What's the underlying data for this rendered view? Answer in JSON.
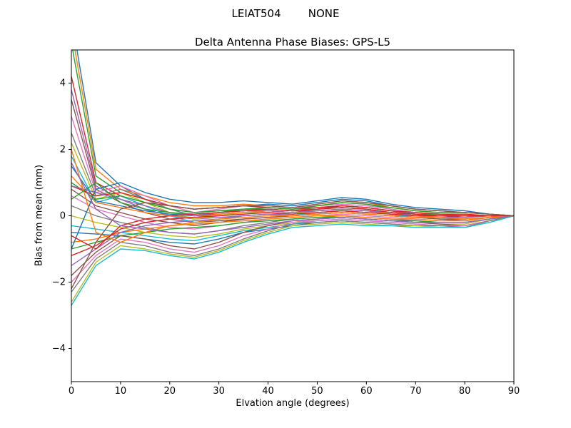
{
  "chart_data": {
    "type": "line",
    "suptitle": "LEIAT504        NONE",
    "title": "Delta Antenna Phase Biases: GPS-L5",
    "xlabel": "Elvation angle (degrees)",
    "ylabel": "Bias from mean (mm)",
    "xlim": [
      0,
      90
    ],
    "ylim": [
      -5,
      5
    ],
    "xticks": [
      0,
      10,
      20,
      30,
      40,
      50,
      60,
      70,
      80,
      90
    ],
    "yticks": [
      -4,
      -2,
      0,
      2,
      4
    ],
    "yticklabels": [
      "−4",
      "−2",
      "0",
      "2",
      "4"
    ],
    "grid": false,
    "legend": "none",
    "x": [
      0,
      5,
      10,
      15,
      20,
      25,
      30,
      35,
      40,
      45,
      50,
      55,
      60,
      65,
      70,
      75,
      80,
      85,
      90
    ],
    "series": [
      [
        6.0,
        1.6,
        0.9,
        0.5,
        0.3,
        0.2,
        0.25,
        0.3,
        0.35,
        0.3,
        0.4,
        0.5,
        0.45,
        0.3,
        0.2,
        0.15,
        0.1,
        0.05,
        0.0
      ],
      [
        5.6,
        1.4,
        0.8,
        0.6,
        0.4,
        0.3,
        0.3,
        0.35,
        0.3,
        0.25,
        0.35,
        0.45,
        0.4,
        0.25,
        0.15,
        0.1,
        0.1,
        0.05,
        0.0
      ],
      [
        5.2,
        1.2,
        0.7,
        0.4,
        0.2,
        0.1,
        0.15,
        0.2,
        0.25,
        0.2,
        0.3,
        0.4,
        0.35,
        0.2,
        0.1,
        0.05,
        0.0,
        0.0,
        0.0
      ],
      [
        4.2,
        1.0,
        0.6,
        0.3,
        0.1,
        0.0,
        0.05,
        0.1,
        0.15,
        0.1,
        0.2,
        0.3,
        0.25,
        0.15,
        0.05,
        0.0,
        -0.05,
        0.0,
        0.0
      ],
      [
        3.8,
        0.9,
        0.5,
        0.2,
        0.0,
        -0.1,
        -0.05,
        0.0,
        0.05,
        0.05,
        0.15,
        0.2,
        0.15,
        0.1,
        0.0,
        -0.05,
        -0.1,
        -0.05,
        0.0
      ],
      [
        3.5,
        0.8,
        0.4,
        0.1,
        -0.1,
        -0.2,
        -0.15,
        -0.1,
        -0.05,
        0.0,
        0.1,
        0.15,
        0.1,
        0.05,
        -0.05,
        -0.1,
        -0.15,
        -0.05,
        0.0
      ],
      [
        3.0,
        0.7,
        0.9,
        0.6,
        0.3,
        0.1,
        0.2,
        0.3,
        0.3,
        0.25,
        0.3,
        0.35,
        0.3,
        0.2,
        0.1,
        0.05,
        0.05,
        0.0,
        0.0
      ],
      [
        2.5,
        0.6,
        0.8,
        0.5,
        0.2,
        0.0,
        0.1,
        0.2,
        0.2,
        0.15,
        0.25,
        0.3,
        0.25,
        0.15,
        0.05,
        0.0,
        0.0,
        0.0,
        0.0
      ],
      [
        2.2,
        0.5,
        0.7,
        0.4,
        0.1,
        -0.1,
        0.0,
        0.1,
        0.1,
        0.05,
        0.15,
        0.2,
        0.15,
        0.1,
        0.0,
        -0.05,
        -0.05,
        0.0,
        0.0
      ],
      [
        1.8,
        0.4,
        0.6,
        0.3,
        0.0,
        -0.2,
        -0.1,
        0.0,
        0.05,
        0.0,
        0.1,
        0.15,
        0.1,
        0.05,
        -0.05,
        -0.1,
        -0.1,
        -0.05,
        0.0
      ],
      [
        1.5,
        0.45,
        0.3,
        0.15,
        0.05,
        0.0,
        0.1,
        0.15,
        0.2,
        0.15,
        0.2,
        0.25,
        0.2,
        0.1,
        0.05,
        0.0,
        0.0,
        0.0,
        0.0
      ],
      [
        1.2,
        0.4,
        0.25,
        0.1,
        0.0,
        -0.05,
        0.05,
        0.1,
        0.15,
        0.1,
        0.15,
        0.2,
        0.15,
        0.05,
        0.0,
        -0.05,
        -0.05,
        0.0,
        0.0
      ],
      [
        1.0,
        0.5,
        0.6,
        0.4,
        0.2,
        0.1,
        0.15,
        0.2,
        0.2,
        0.15,
        0.2,
        0.25,
        0.2,
        0.1,
        0.05,
        0.05,
        0.0,
        0.0,
        0.0
      ],
      [
        0.9,
        0.6,
        0.7,
        0.5,
        0.3,
        0.2,
        0.25,
        0.3,
        0.25,
        0.2,
        0.25,
        0.3,
        0.25,
        0.15,
        0.1,
        0.05,
        0.05,
        0.0,
        0.0
      ],
      [
        0.9,
        0.7,
        0.5,
        0.3,
        0.1,
        0.0,
        0.1,
        0.15,
        0.15,
        0.1,
        0.15,
        0.2,
        0.15,
        0.1,
        0.0,
        0.0,
        0.0,
        0.0,
        0.0
      ],
      [
        0.8,
        0.3,
        0.1,
        -0.1,
        -0.2,
        -0.3,
        -0.2,
        -0.1,
        -0.05,
        0.0,
        0.05,
        0.1,
        0.05,
        0.0,
        -0.05,
        -0.1,
        -0.1,
        -0.05,
        0.0
      ],
      [
        0.6,
        0.2,
        0.0,
        -0.2,
        -0.35,
        -0.4,
        -0.3,
        -0.2,
        -0.1,
        -0.05,
        0.0,
        0.05,
        0.0,
        -0.05,
        -0.1,
        -0.15,
        -0.15,
        -0.05,
        0.0
      ],
      [
        0.3,
        0.0,
        -0.2,
        -0.35,
        -0.5,
        -0.55,
        -0.45,
        -0.3,
        -0.2,
        -0.1,
        -0.05,
        0.0,
        -0.05,
        -0.1,
        -0.15,
        -0.2,
        -0.2,
        -0.1,
        0.0
      ],
      [
        0.0,
        -0.2,
        -0.35,
        -0.5,
        -0.6,
        -0.65,
        -0.55,
        -0.4,
        -0.3,
        -0.2,
        -0.1,
        -0.05,
        -0.1,
        -0.15,
        -0.2,
        -0.25,
        -0.25,
        -0.1,
        0.0
      ],
      [
        -0.3,
        -0.4,
        -0.5,
        -0.6,
        -0.7,
        -0.75,
        -0.6,
        -0.45,
        -0.35,
        -0.25,
        -0.15,
        -0.1,
        -0.15,
        -0.2,
        -0.25,
        -0.3,
        -0.3,
        -0.15,
        0.0
      ],
      [
        -0.5,
        -0.55,
        -0.6,
        -0.7,
        -0.8,
        -0.85,
        -0.7,
        -0.5,
        -0.4,
        -0.3,
        -0.2,
        -0.15,
        -0.2,
        -0.25,
        -0.3,
        -0.3,
        -0.3,
        -0.15,
        0.0
      ],
      [
        -0.8,
        -0.7,
        -0.5,
        -0.4,
        -0.3,
        -0.25,
        -0.2,
        -0.15,
        -0.1,
        -0.05,
        0.0,
        0.0,
        -0.05,
        -0.1,
        -0.1,
        -0.15,
        -0.15,
        -0.05,
        0.0
      ],
      [
        -1.0,
        -0.8,
        -0.6,
        -0.5,
        -0.4,
        -0.35,
        -0.3,
        -0.2,
        -0.15,
        -0.1,
        -0.05,
        -0.05,
        -0.1,
        -0.15,
        -0.15,
        -0.2,
        -0.2,
        -0.1,
        0.0
      ],
      [
        -1.2,
        -0.9,
        -0.4,
        -0.2,
        -0.1,
        -0.05,
        0.0,
        0.05,
        0.1,
        0.05,
        0.1,
        0.15,
        0.1,
        0.05,
        0.0,
        0.0,
        0.0,
        0.0,
        0.0
      ],
      [
        -1.5,
        -1.0,
        -0.5,
        -0.3,
        -0.2,
        -0.15,
        -0.1,
        0.0,
        0.05,
        0.0,
        0.05,
        0.1,
        0.05,
        0.0,
        -0.05,
        -0.05,
        -0.05,
        0.0,
        0.0
      ],
      [
        -1.8,
        -1.1,
        -0.6,
        -0.7,
        -0.9,
        -1.0,
        -0.8,
        -0.5,
        -0.3,
        -0.15,
        -0.1,
        -0.05,
        -0.1,
        -0.15,
        -0.2,
        -0.25,
        -0.3,
        -0.15,
        0.0
      ],
      [
        -2.0,
        -1.2,
        -0.7,
        -0.8,
        -1.0,
        -1.1,
        -0.9,
        -0.6,
        -0.4,
        -0.2,
        -0.15,
        -0.1,
        -0.15,
        -0.2,
        -0.25,
        -0.3,
        -0.3,
        -0.15,
        0.0
      ],
      [
        -2.3,
        -1.3,
        -0.8,
        -0.9,
        -1.1,
        -1.2,
        -1.0,
        -0.7,
        -0.45,
        -0.25,
        -0.2,
        -0.15,
        -0.2,
        -0.25,
        -0.3,
        -0.3,
        -0.35,
        -0.15,
        0.0
      ],
      [
        -2.6,
        -1.4,
        -0.9,
        -1.0,
        -1.15,
        -1.25,
        -1.05,
        -0.75,
        -0.5,
        -0.3,
        -0.25,
        -0.2,
        -0.25,
        -0.3,
        -0.3,
        -0.35,
        -0.35,
        -0.2,
        0.0
      ],
      [
        -2.7,
        -1.5,
        -1.0,
        -1.05,
        -1.2,
        -1.3,
        -1.1,
        -0.8,
        -0.55,
        -0.35,
        -0.3,
        -0.25,
        -0.3,
        -0.3,
        -0.35,
        -0.35,
        -0.35,
        -0.2,
        0.0
      ],
      [
        -1.0,
        0.8,
        1.0,
        0.7,
        0.5,
        0.4,
        0.4,
        0.45,
        0.4,
        0.35,
        0.45,
        0.55,
        0.5,
        0.35,
        0.25,
        0.2,
        0.15,
        0.05,
        0.0
      ],
      [
        2.0,
        -0.5,
        -0.8,
        -0.5,
        -0.3,
        -0.2,
        -0.1,
        -0.05,
        0.0,
        0.0,
        0.05,
        0.1,
        0.05,
        0.0,
        -0.05,
        -0.05,
        -0.1,
        -0.05,
        0.0
      ],
      [
        0.5,
        1.0,
        0.4,
        0.2,
        0.1,
        0.05,
        0.1,
        0.2,
        0.25,
        0.2,
        0.3,
        0.4,
        0.35,
        0.25,
        0.15,
        0.1,
        0.1,
        0.05,
        0.0
      ],
      [
        -0.6,
        -1.0,
        -0.3,
        -0.1,
        0.0,
        0.05,
        0.1,
        0.15,
        0.2,
        0.15,
        0.2,
        0.25,
        0.2,
        0.1,
        0.05,
        0.0,
        0.0,
        0.0,
        0.0
      ],
      [
        1.6,
        0.2,
        -0.3,
        -0.4,
        -0.5,
        -0.55,
        -0.45,
        -0.35,
        -0.25,
        -0.15,
        -0.1,
        -0.05,
        -0.1,
        -0.15,
        -0.2,
        -0.2,
        -0.2,
        -0.1,
        0.0
      ],
      [
        -2.2,
        -0.8,
        0.2,
        0.4,
        0.3,
        0.2,
        0.25,
        0.3,
        0.3,
        0.25,
        0.35,
        0.45,
        0.4,
        0.3,
        0.2,
        0.15,
        0.1,
        0.05,
        0.0
      ]
    ],
    "colors": [
      "#1f77b4",
      "#ff7f0e",
      "#2ca02c",
      "#d62728",
      "#9467bd",
      "#8c564b",
      "#e377c2",
      "#7f7f7f",
      "#bcbd22",
      "#17becf"
    ],
    "axis_color": "#000000",
    "background": "#ffffff"
  }
}
